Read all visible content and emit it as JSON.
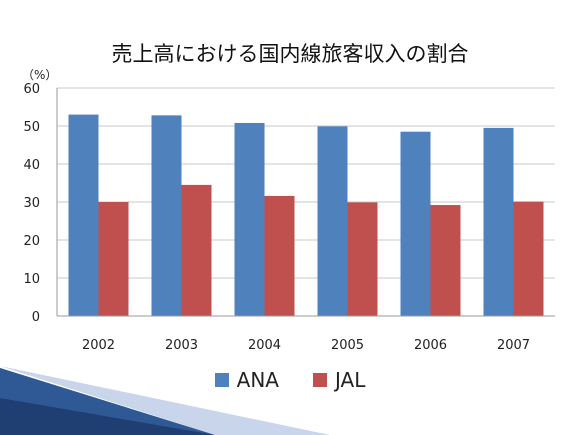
{
  "slide": {
    "title": "売上高における国内線旅客収入の割合"
  },
  "chart_data": {
    "type": "bar",
    "title": "売上高における国内線旅客収入の割合",
    "ylabel": "（%）",
    "xlabel": "",
    "categories": [
      "2002",
      "2003",
      "2004",
      "2005",
      "2006",
      "2007"
    ],
    "ylim": [
      0,
      60
    ],
    "yticks": [
      0,
      10,
      20,
      30,
      40,
      50,
      60
    ],
    "grid": true,
    "legend_position": "bottom",
    "series": [
      {
        "name": "ANA",
        "color": "#4f81bd",
        "values": [
          53.0,
          52.8,
          50.8,
          49.9,
          48.5,
          49.5
        ]
      },
      {
        "name": "JAL",
        "color": "#c0504d",
        "values": [
          30.0,
          34.5,
          31.6,
          29.9,
          29.2,
          30.1
        ]
      }
    ]
  }
}
